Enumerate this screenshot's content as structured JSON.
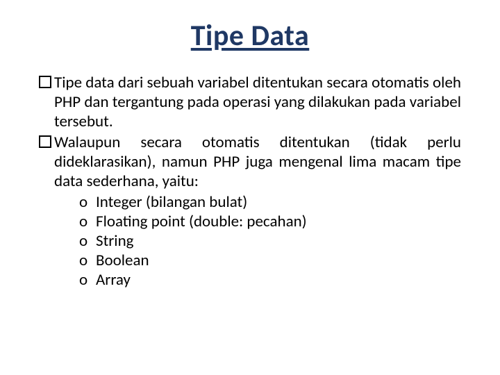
{
  "title": "Tipe Data",
  "title_color": "#1f3864",
  "title_fontsize": 42,
  "body_fontsize": 23,
  "body_color": "#000000",
  "background_color": "#ffffff",
  "paragraphs": {
    "p1": "Tipe data dari sebuah variabel ditentukan secara otomatis oleh PHP dan tergantung pada operasi yang dilakukan pada variabel tersebut.",
    "p2": "Walaupun secara otomatis ditentukan (tidak perlu dideklarasikan), namun PHP juga mengenal lima macam tipe data sederhana, yaitu:"
  },
  "sub_bullet": "o",
  "subitems": {
    "i1": "Integer (bilangan bulat)",
    "i2": "Floating point (double: pecahan)",
    "i3": "String",
    "i4": "Boolean",
    "i5": "Array"
  }
}
